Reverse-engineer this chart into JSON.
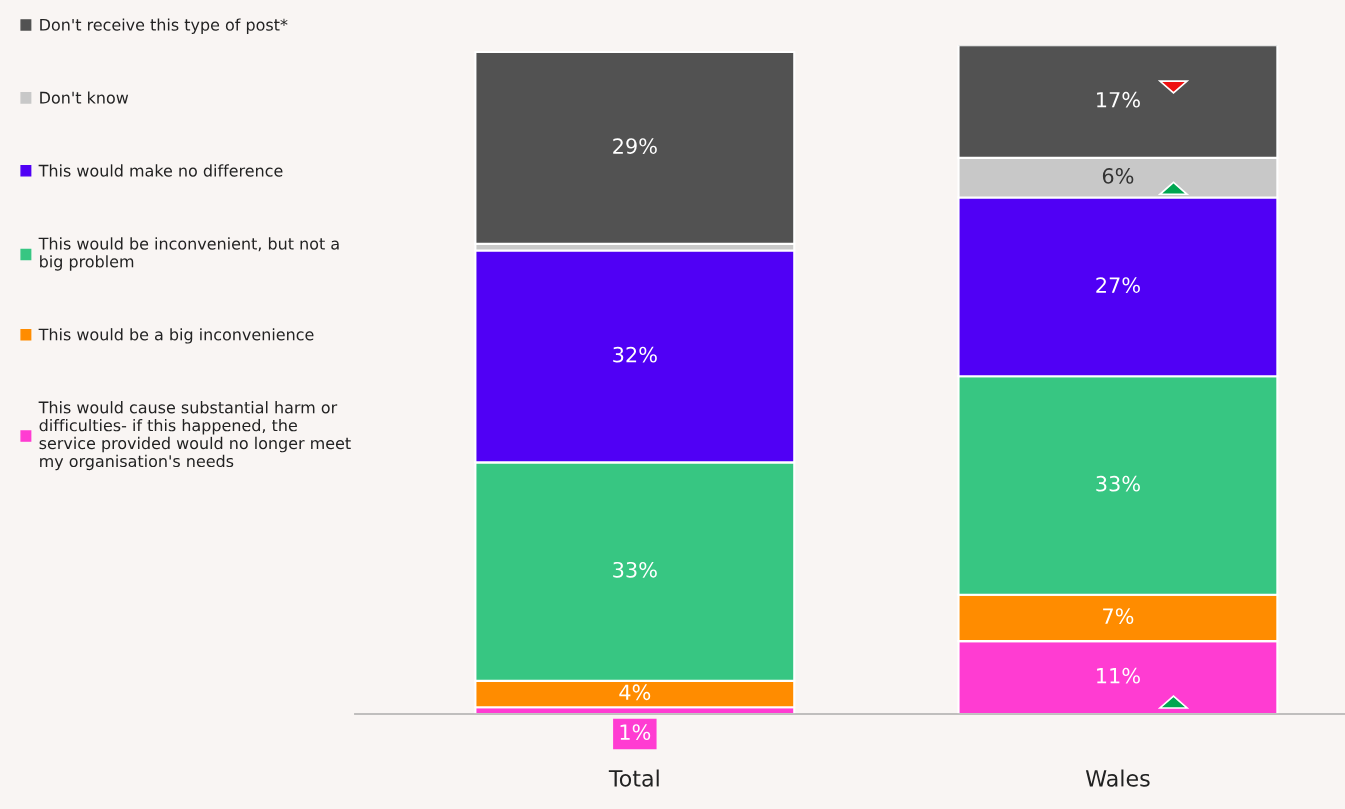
{
  "chart_data": {
    "type": "bar",
    "stacked": true,
    "categories": [
      "Total",
      "Wales"
    ],
    "legend": "left",
    "series": [
      {
        "name": "This would cause substantial harm or\ndifficulties- if this happened, the\nservice provided would no longer meet\nmy organisation's needs",
        "color": "#ff3cd2",
        "values": [
          1,
          11
        ],
        "value_labels": [
          "1%",
          "11%"
        ]
      },
      {
        "name": "This would be a big inconvenience",
        "color": "#ff8c00",
        "values": [
          4,
          7
        ],
        "value_labels": [
          "4%",
          "7%"
        ]
      },
      {
        "name": "This would be inconvenient, but not a\nbig problem",
        "color": "#37c682",
        "values": [
          33,
          33
        ],
        "value_labels": [
          "33%",
          "33%"
        ]
      },
      {
        "name": "This would make no difference",
        "color": "#5000f5",
        "values": [
          32,
          27
        ],
        "value_labels": [
          "32%",
          "27%"
        ]
      },
      {
        "name": "Don't know",
        "color": "#c8c8c8",
        "values": [
          1,
          6
        ],
        "value_labels": [
          null,
          "6%"
        ]
      },
      {
        "name": "Don't receive this type of post*",
        "color": "#525252",
        "values": [
          29,
          17
        ],
        "value_labels": [
          "29%",
          "17%"
        ]
      }
    ]
  }
}
